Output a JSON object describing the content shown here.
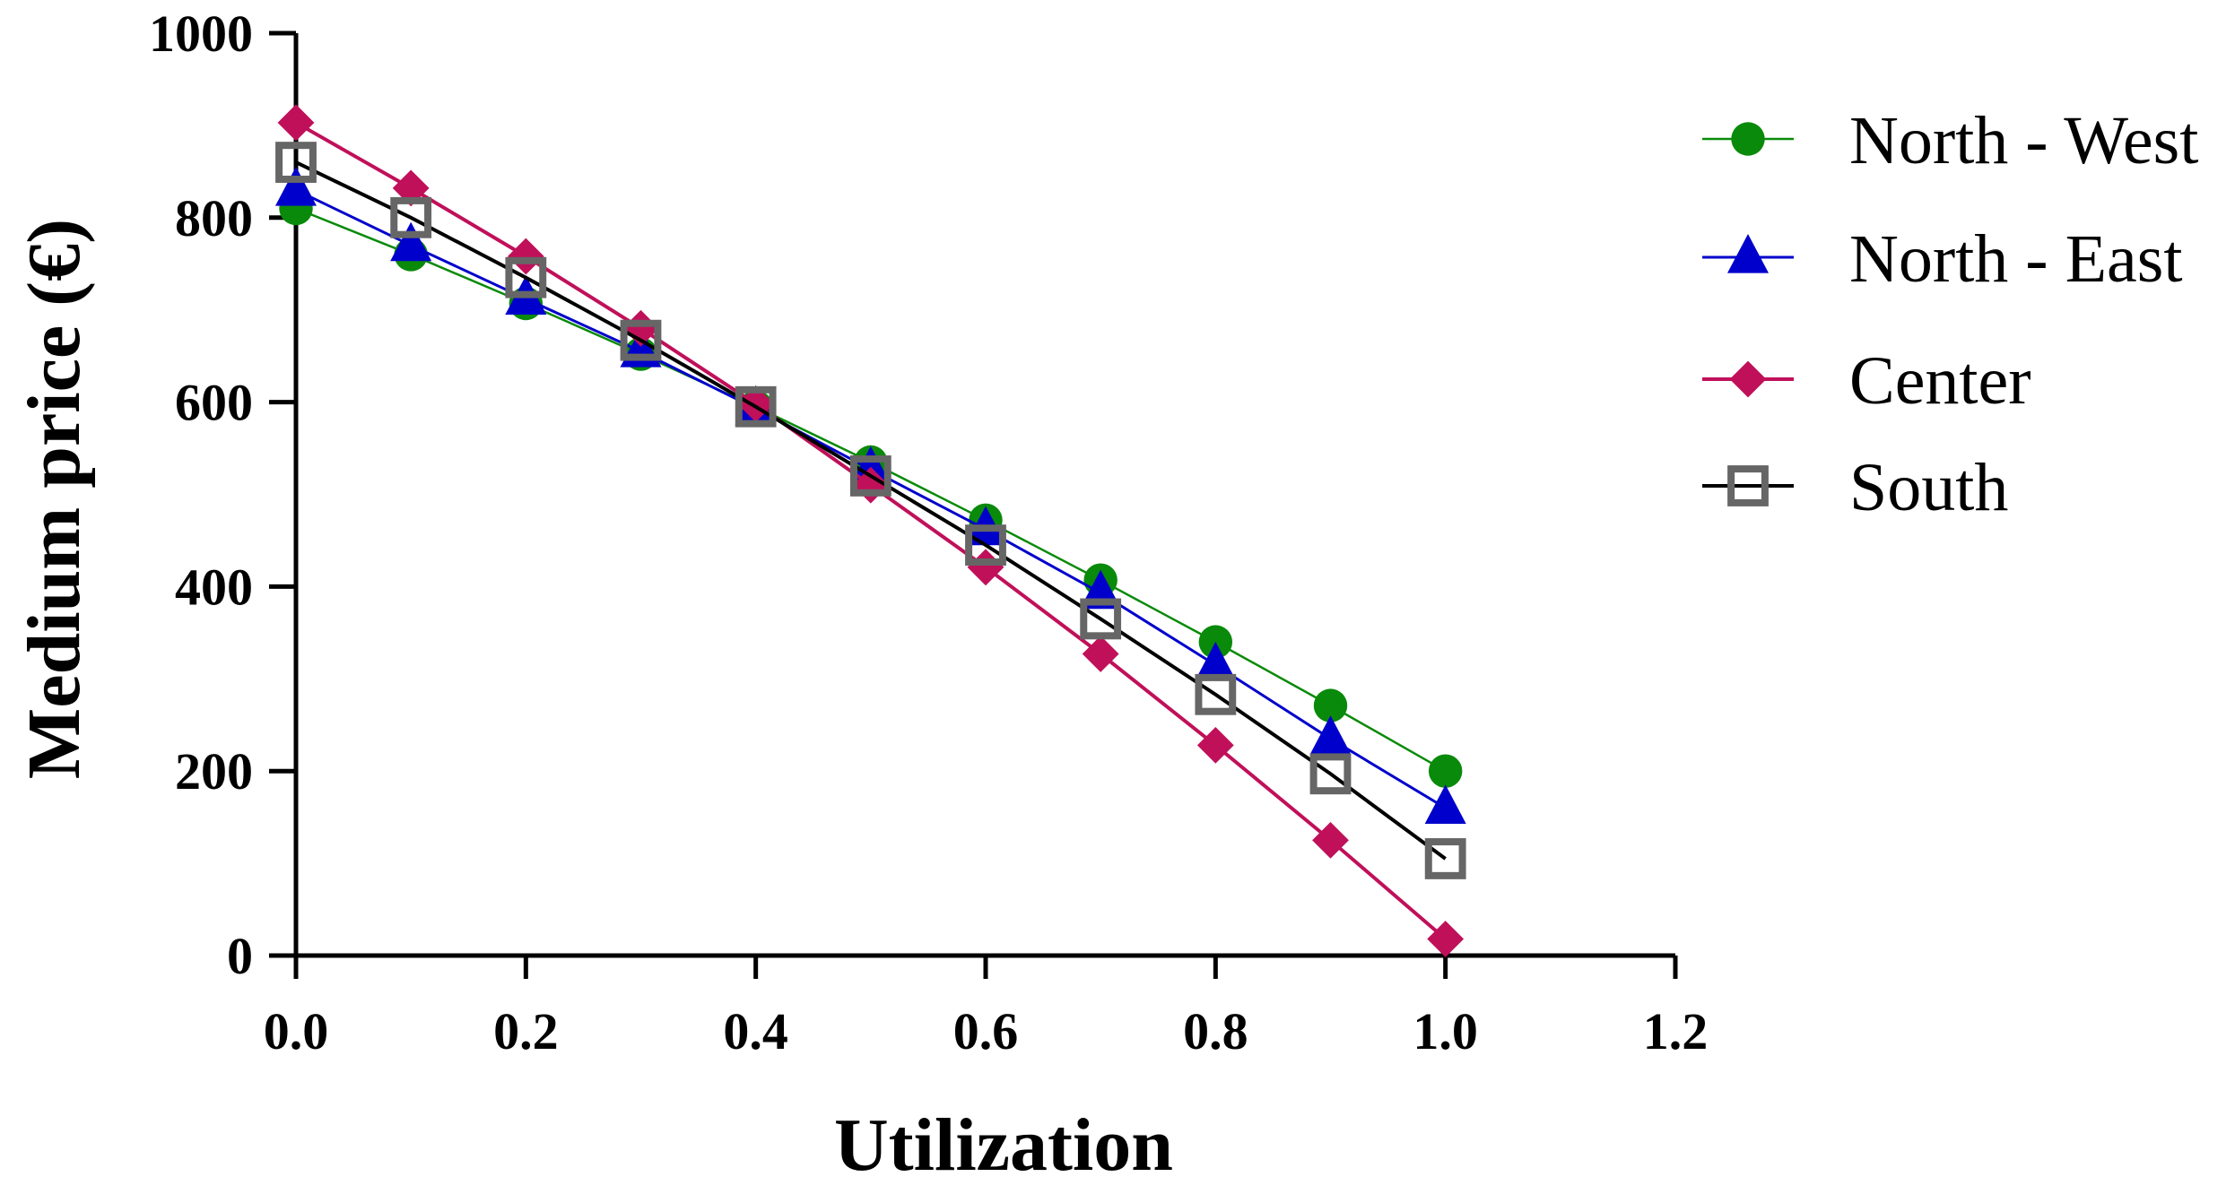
{
  "chart_data": {
    "type": "line",
    "title": "",
    "xlabel": "Utilization",
    "ylabel": "Medium price (€)",
    "xlim": [
      0,
      1.2
    ],
    "ylim": [
      0,
      1000
    ],
    "x_ticks": [
      "0.0",
      "0.2",
      "0.4",
      "0.6",
      "0.8",
      "1.0",
      "1.2"
    ],
    "y_ticks": [
      "0",
      "200",
      "400",
      "600",
      "800",
      "1000"
    ],
    "legend_position": "right",
    "x": [
      0.0,
      0.1,
      0.2,
      0.3,
      0.4,
      0.5,
      0.6,
      0.7,
      0.8,
      0.9,
      1.0
    ],
    "series": [
      {
        "name": "North - West",
        "color": "#0a8a0a",
        "marker": "circle",
        "values": [
          810,
          760,
          707,
          652,
          595,
          535,
          472,
          407,
          340,
          271,
          200
        ]
      },
      {
        "name": "North - East",
        "color": "#0000cc",
        "marker": "triangle",
        "values": [
          830,
          770,
          712,
          655,
          593,
          527,
          462,
          393,
          315,
          235,
          160
        ]
      },
      {
        "name": "Center",
        "color": "#c0105a",
        "marker": "diamond",
        "values": [
          903,
          832,
          758,
          680,
          598,
          510,
          421,
          327,
          228,
          125,
          18
        ]
      },
      {
        "name": "South",
        "color": "#000000",
        "marker": "square-open",
        "marker_color": "#666666",
        "values": [
          860,
          800,
          735,
          667,
          595,
          520,
          445,
          365,
          283,
          197,
          105
        ]
      }
    ]
  }
}
